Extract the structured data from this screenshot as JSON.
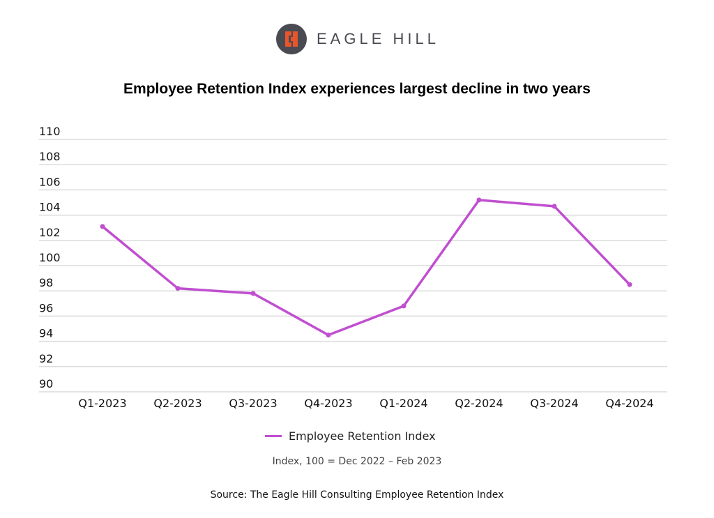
{
  "logo": {
    "text": "EAGLE HILL"
  },
  "chart_data": {
    "type": "line",
    "title": "Employee Retention Index experiences largest decline in two years",
    "categories": [
      "Q1-2023",
      "Q2-2023",
      "Q3-2023",
      "Q4-2023",
      "Q1-2024",
      "Q2-2024",
      "Q3-2024",
      "Q4-2024"
    ],
    "series": [
      {
        "name": "Employee Retention Index",
        "color": "#c04fd0",
        "values": [
          103.1,
          98.2,
          97.8,
          94.5,
          96.8,
          105.2,
          104.7,
          98.5
        ]
      }
    ],
    "yticks": [
      "110",
      "108",
      "106",
      "104",
      "102",
      "100",
      "98",
      "96",
      "94",
      "92",
      "90"
    ],
    "ylim": [
      90,
      110
    ],
    "xlabel": "",
    "ylabel": "",
    "grid": true,
    "legend": "bottom-center",
    "note": "Index, 100 = Dec 2022 – Feb 2023",
    "source": "Source: The Eagle Hill Consulting Employee Retention Index"
  }
}
